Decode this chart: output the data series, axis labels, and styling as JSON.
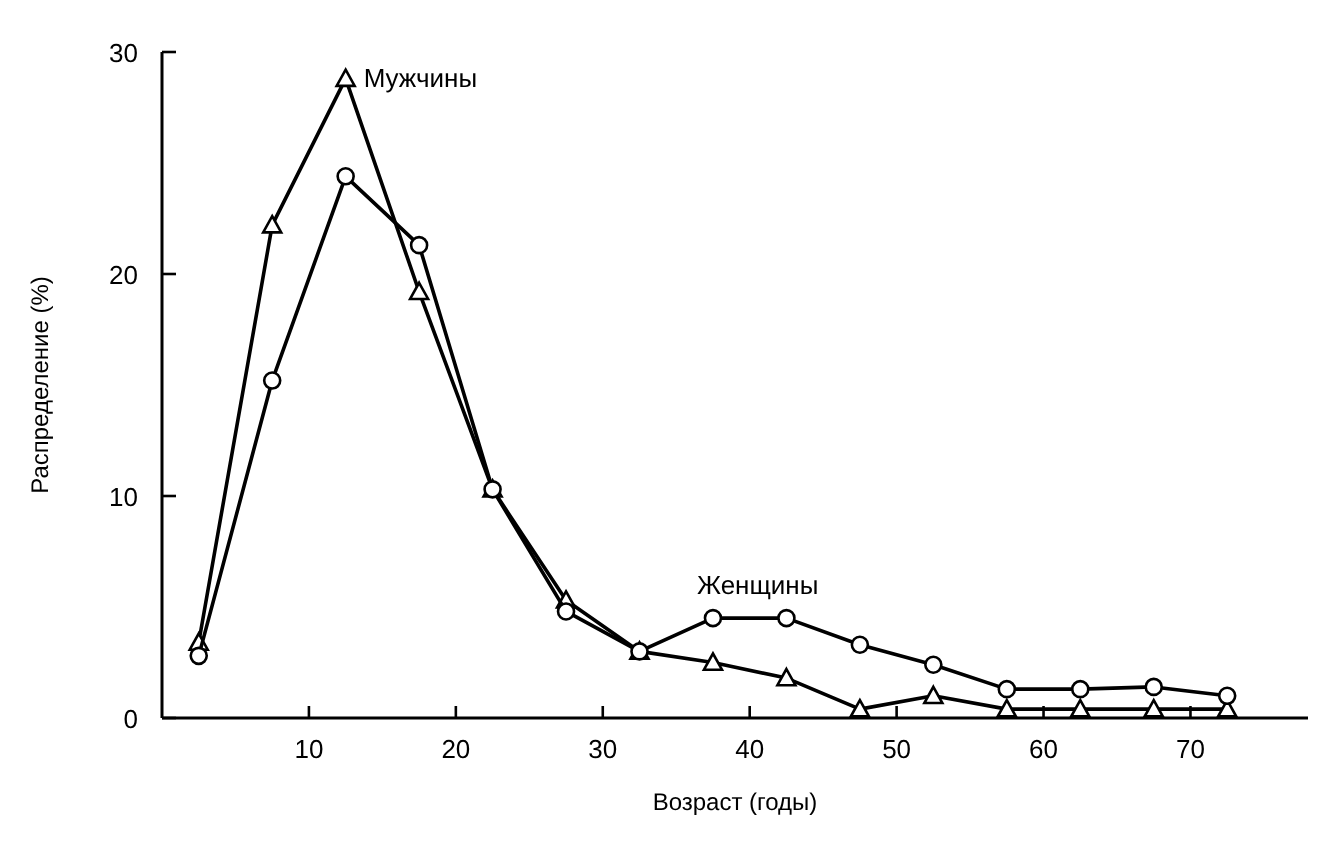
{
  "chart_data": {
    "type": "line",
    "xlabel": "Возраст (годы)",
    "ylabel": "Распределение (%)",
    "x": [
      2.5,
      7.5,
      12.5,
      17.5,
      22.5,
      27.5,
      32.5,
      37.5,
      42.5,
      47.5,
      52.5,
      57.5,
      62.5,
      67.5,
      72.5
    ],
    "series": [
      {
        "name": "Мужчины",
        "color": "#000000",
        "marker": "triangle",
        "values": [
          3.4,
          22.2,
          28.8,
          19.2,
          10.3,
          5.3,
          3.0,
          2.5,
          1.8,
          0.4,
          1.0,
          0.4,
          0.4,
          0.4,
          0.4
        ]
      },
      {
        "name": "Женщины",
        "color": "#000000",
        "marker": "circle",
        "values": [
          2.8,
          15.2,
          24.4,
          21.3,
          10.3,
          4.8,
          3.0,
          4.5,
          4.5,
          3.3,
          2.4,
          1.3,
          1.3,
          1.4,
          1.0
        ]
      }
    ],
    "xlim": [
      0,
      78
    ],
    "xticks": [
      10,
      20,
      30,
      40,
      50,
      60,
      70
    ],
    "ylim": [
      0,
      30
    ],
    "yticks": [
      0,
      10,
      20,
      30
    ],
    "grid": false,
    "line_style": "solid"
  }
}
